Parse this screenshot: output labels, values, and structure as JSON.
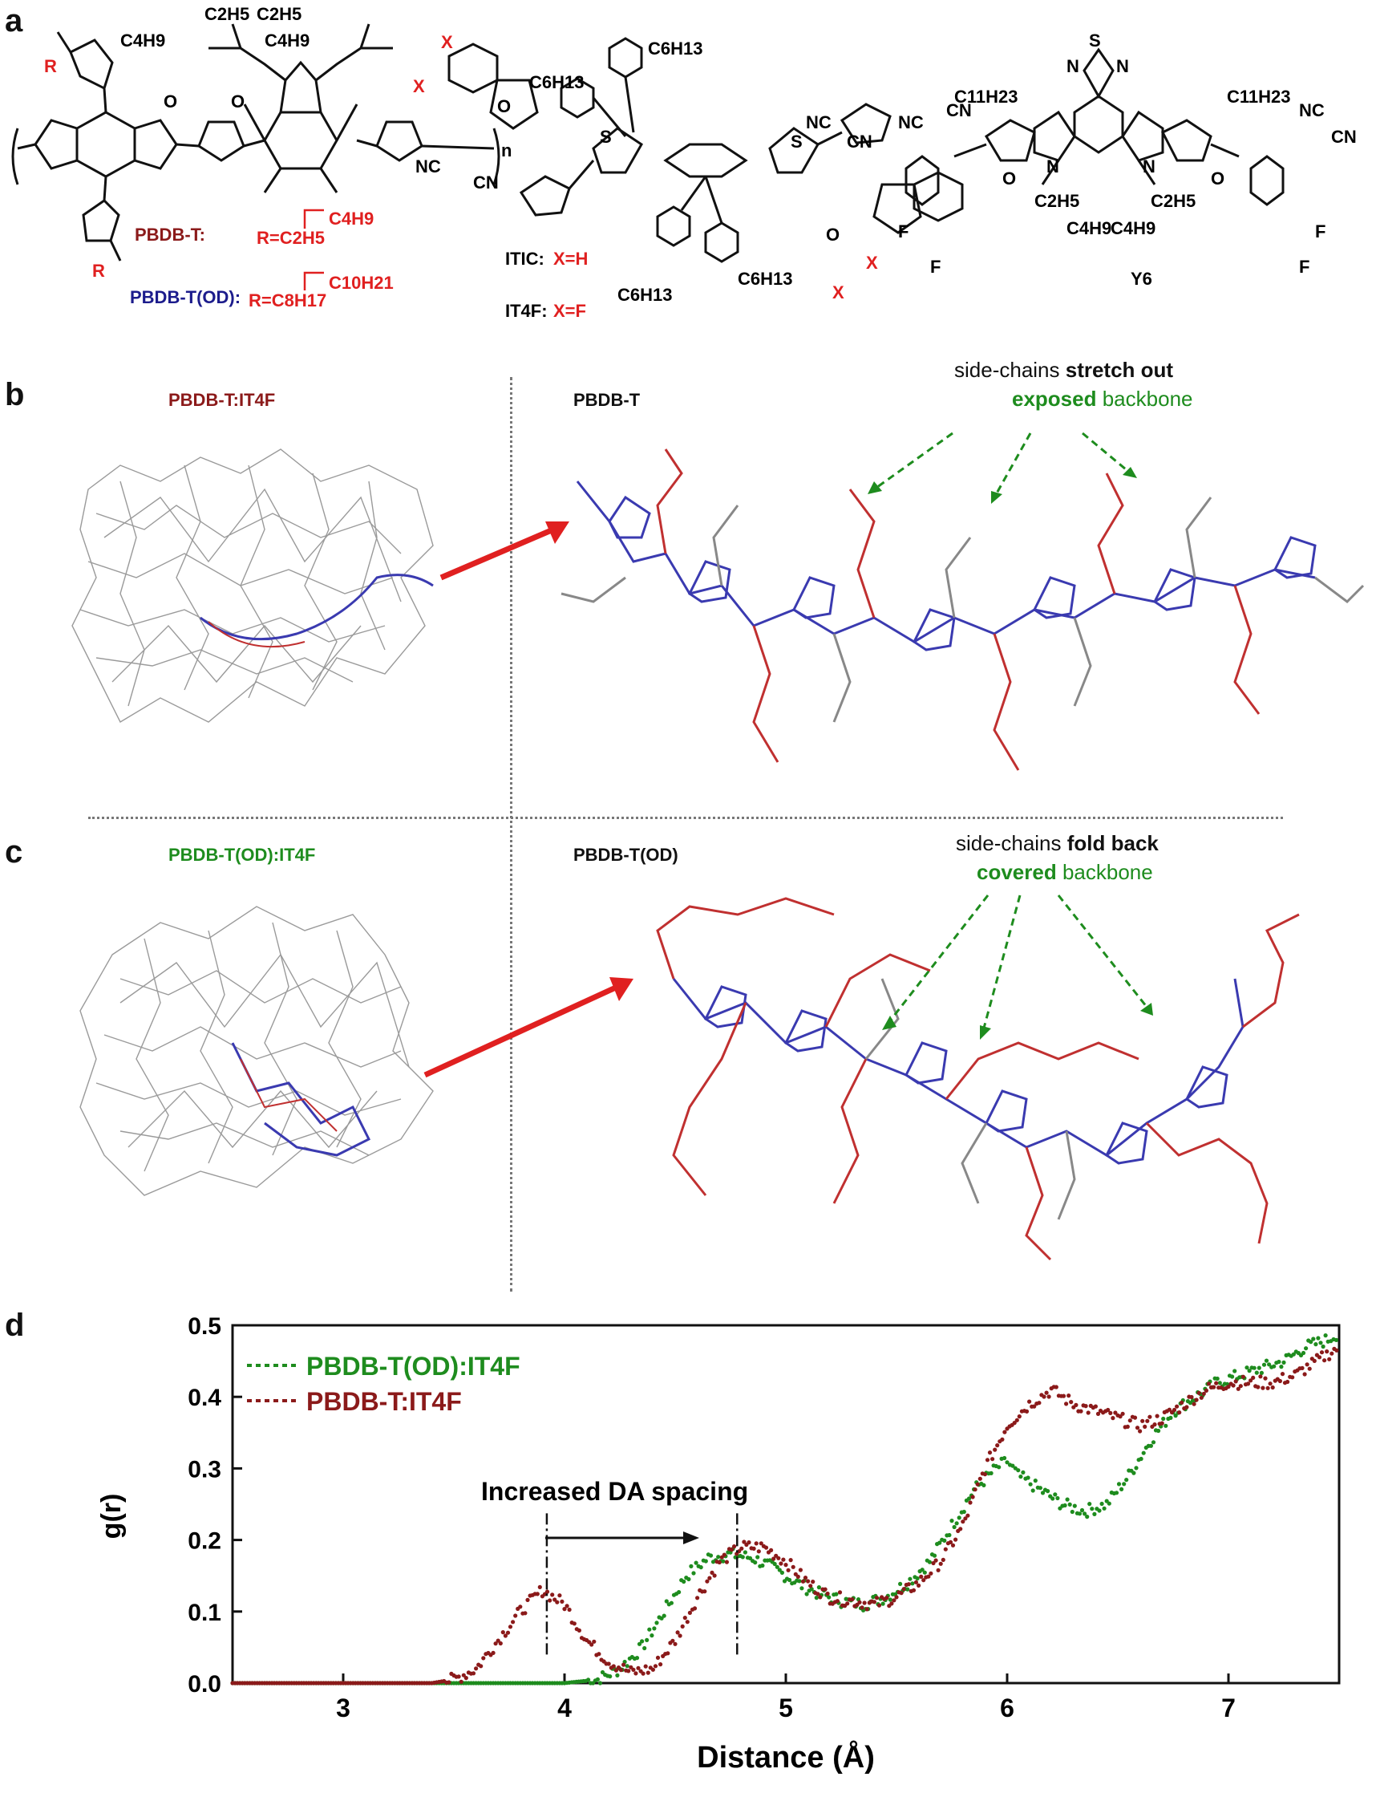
{
  "panels": {
    "a": "a",
    "b": "b",
    "c": "c",
    "d": "d"
  },
  "panel_a": {
    "polymer_side_top": [
      "C4H9",
      "C2H5",
      "C2H5",
      "C4H9"
    ],
    "polymer_label_T": "PBDB-T:",
    "polymer_R_T": "R=C2H5",
    "polymer_R_T_branch": "C4H9",
    "polymer_label_OD": "PBDB-T(OD):",
    "polymer_R_OD": "R=C8H17",
    "polymer_R_OD_branch": "C10H21",
    "R_label": "R",
    "n_label": "n",
    "itic_label": "ITIC:",
    "itic_x": "X=H",
    "it4f_label": "IT4F:",
    "it4f_x": "X=F",
    "itic_groups": [
      "C6H13",
      "C6H13",
      "C6H13",
      "C6H13"
    ],
    "x_label": "X",
    "cn_label": "CN",
    "nc_label": "NC",
    "o_label": "O",
    "s_label": "S",
    "n_atom": "N",
    "f_label": "F",
    "y6_label": "Y6",
    "y6_groups": [
      "C11H23",
      "C11H23",
      "C2H5",
      "C4H9",
      "C4H9",
      "C2H5"
    ]
  },
  "panel_b": {
    "left_title": "PBDB-T:IT4F",
    "right_title": "PBDB-T",
    "note_line1_plain": "side-chains ",
    "note_line1_bold": "stretch out",
    "note_line2_bold": "exposed",
    "note_line2_plain": " backbone"
  },
  "panel_c": {
    "left_title": "PBDB-T(OD):IT4F",
    "right_title": "PBDB-T(OD)",
    "note_line1_plain": "side-chains ",
    "note_line1_bold": "fold back",
    "note_line2_bold": "covered",
    "note_line2_plain": " backbone"
  },
  "colors": {
    "dark_red": "#8b1a1a",
    "green": "#1e8c1e",
    "blue": "#2e2eaa",
    "red": "#e02020",
    "navy": "#1c1c8c",
    "gray": "#888888"
  },
  "chart_data": {
    "type": "scatter",
    "xlabel": "Distance (Å)",
    "ylabel": "g(r)",
    "xlim": [
      2.5,
      7.5
    ],
    "ylim": [
      0.0,
      0.5
    ],
    "xticks": [
      3,
      4,
      5,
      6,
      7
    ],
    "yticks": [
      0.0,
      0.1,
      0.2,
      0.3,
      0.4,
      0.5
    ],
    "legend_position": "top-left",
    "annotation": "Increased DA spacing",
    "markers_x": [
      3.92,
      4.78
    ],
    "series": [
      {
        "name": "PBDB-T(OD):IT4F",
        "color": "#1e8c1e",
        "x": [
          2.5,
          3.5,
          4.0,
          4.15,
          4.25,
          4.35,
          4.45,
          4.55,
          4.65,
          4.75,
          4.85,
          4.95,
          5.05,
          5.15,
          5.25,
          5.35,
          5.45,
          5.55,
          5.65,
          5.75,
          5.85,
          5.95,
          6.0,
          6.05,
          6.15,
          6.25,
          6.35,
          6.45,
          6.55,
          6.65,
          6.75,
          6.85,
          6.95,
          7.05,
          7.15,
          7.25,
          7.35,
          7.45,
          7.5
        ],
        "y": [
          0.0,
          0.0,
          0.0,
          0.005,
          0.02,
          0.05,
          0.1,
          0.15,
          0.175,
          0.18,
          0.175,
          0.16,
          0.14,
          0.125,
          0.115,
          0.11,
          0.12,
          0.14,
          0.17,
          0.22,
          0.27,
          0.3,
          0.31,
          0.29,
          0.27,
          0.25,
          0.24,
          0.25,
          0.29,
          0.34,
          0.38,
          0.4,
          0.42,
          0.43,
          0.44,
          0.45,
          0.47,
          0.48,
          0.49
        ]
      },
      {
        "name": "PBDB-T:IT4F",
        "color": "#8b1a1a",
        "x": [
          2.5,
          3.4,
          3.5,
          3.6,
          3.7,
          3.8,
          3.9,
          4.0,
          4.1,
          4.2,
          4.3,
          4.4,
          4.5,
          4.6,
          4.7,
          4.8,
          4.9,
          5.0,
          5.1,
          5.2,
          5.3,
          5.4,
          5.5,
          5.6,
          5.7,
          5.8,
          5.9,
          6.0,
          6.1,
          6.2,
          6.3,
          6.4,
          6.5,
          6.6,
          6.7,
          6.8,
          6.9,
          7.0,
          7.1,
          7.2,
          7.3,
          7.4,
          7.5
        ],
        "y": [
          0.0,
          0.0,
          0.005,
          0.02,
          0.06,
          0.1,
          0.13,
          0.11,
          0.06,
          0.03,
          0.015,
          0.02,
          0.06,
          0.12,
          0.17,
          0.19,
          0.19,
          0.17,
          0.14,
          0.12,
          0.115,
          0.11,
          0.12,
          0.14,
          0.17,
          0.22,
          0.3,
          0.36,
          0.39,
          0.41,
          0.39,
          0.38,
          0.37,
          0.36,
          0.37,
          0.39,
          0.41,
          0.42,
          0.42,
          0.42,
          0.43,
          0.45,
          0.47
        ]
      }
    ]
  }
}
